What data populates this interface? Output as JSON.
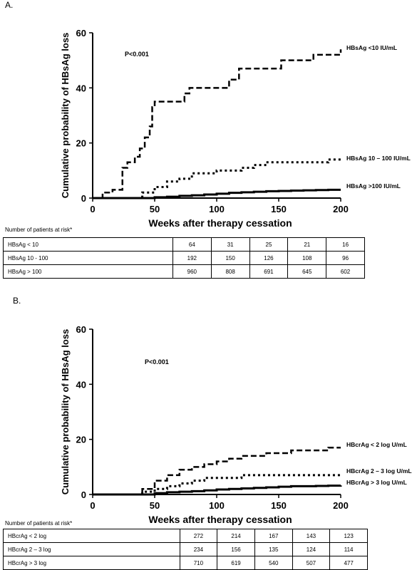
{
  "panels": [
    {
      "label": "A.",
      "pvalue": "P<0.001",
      "risk_title": "Number of patients at risk*",
      "risk_table": [
        {
          "label": "HBsAg < 10",
          "values": [
            "64",
            "31",
            "25",
            "21",
            "16"
          ]
        },
        {
          "label": "HBsAg 10 - 100",
          "values": [
            "192",
            "150",
            "126",
            "108",
            "96"
          ]
        },
        {
          "label": "HBsAg > 100",
          "values": [
            "960",
            "808",
            "691",
            "645",
            "602"
          ]
        }
      ]
    },
    {
      "label": "B.",
      "pvalue": "P<0.001",
      "risk_title": "Number of patients at risk*",
      "risk_table": [
        {
          "label": "HBcrAg < 2 log",
          "values": [
            "272",
            "214",
            "167",
            "143",
            "123"
          ]
        },
        {
          "label": "HBcrAg 2 – 3 log",
          "values": [
            "234",
            "156",
            "135",
            "124",
            "114"
          ]
        },
        {
          "label": "HBcrAg > 3 log",
          "values": [
            "710",
            "619",
            "540",
            "507",
            "477"
          ]
        }
      ]
    }
  ],
  "chart_data": [
    {
      "type": "line",
      "subtype": "kaplan-meier step",
      "title": "",
      "xlabel": "Weeks after therapy cessation",
      "ylabel": "Cumulative probability of HBsAg loss",
      "xlim": [
        0,
        200
      ],
      "ylim": [
        0,
        60
      ],
      "xticks": [
        "0",
        "50",
        "100",
        "150",
        "200"
      ],
      "yticks": [
        "0",
        "20",
        "40",
        "60"
      ],
      "series": [
        {
          "name": "HBsAg <10 IU/mL",
          "style": "dashed",
          "x": [
            0,
            8,
            16,
            24,
            28,
            34,
            38,
            42,
            46,
            48,
            50,
            54,
            60,
            68,
            74,
            78,
            90,
            100,
            110,
            118,
            126,
            140,
            152,
            164,
            178,
            186,
            200
          ],
          "y": [
            0,
            2,
            3,
            11,
            13,
            15,
            18,
            22,
            26,
            33,
            35,
            35,
            35,
            35,
            38,
            40,
            40,
            40,
            43,
            47,
            47,
            47,
            50,
            50,
            52,
            52,
            54
          ]
        },
        {
          "name": "HBsAg 10 – 100 IU/mL",
          "style": "dotted",
          "x": [
            0,
            25,
            40,
            50,
            60,
            70,
            80,
            90,
            100,
            110,
            120,
            130,
            140,
            150,
            160,
            170,
            180,
            190,
            200
          ],
          "y": [
            0,
            0,
            2,
            4,
            6,
            7,
            9,
            9,
            10,
            10,
            11,
            12,
            13,
            13,
            13,
            13,
            13,
            14,
            15
          ]
        },
        {
          "name": "HBsAg >100 IU/mL",
          "style": "solid",
          "x": [
            0,
            40,
            50,
            60,
            70,
            80,
            90,
            100,
            110,
            120,
            130,
            140,
            150,
            160,
            170,
            180,
            190,
            200
          ],
          "y": [
            0,
            0,
            0.3,
            0.5,
            0.8,
            1,
            1.3,
            1.6,
            1.9,
            2.1,
            2.3,
            2.5,
            2.6,
            2.7,
            2.8,
            2.9,
            3,
            3
          ]
        }
      ]
    },
    {
      "type": "line",
      "subtype": "kaplan-meier step",
      "title": "",
      "xlabel": "Weeks after therapy cessation",
      "ylabel": "Cumulative probability of HBsAg loss",
      "xlim": [
        0,
        200
      ],
      "ylim": [
        0,
        60
      ],
      "xticks": [
        "0",
        "50",
        "100",
        "150",
        "200"
      ],
      "yticks": [
        "0",
        "20",
        "40",
        "60"
      ],
      "series": [
        {
          "name": "HBcrAg < 2 log U/mL",
          "style": "dashed",
          "x": [
            0,
            25,
            40,
            50,
            60,
            70,
            80,
            90,
            100,
            110,
            120,
            130,
            140,
            150,
            160,
            170,
            180,
            190,
            200
          ],
          "y": [
            0,
            0,
            2,
            5,
            7,
            9,
            10,
            11,
            12,
            13,
            14,
            14,
            15,
            15,
            16,
            16,
            16,
            17,
            17
          ]
        },
        {
          "name": "HBcrAg 2 – 3 log U/mL",
          "style": "dotted",
          "x": [
            0,
            25,
            40,
            50,
            60,
            70,
            80,
            90,
            100,
            110,
            120,
            130,
            140,
            150,
            160,
            170,
            180,
            190,
            200
          ],
          "y": [
            0,
            0,
            1,
            2,
            3,
            4,
            5,
            6,
            6,
            6,
            7,
            7,
            7,
            7,
            7,
            7,
            7,
            7,
            7
          ]
        },
        {
          "name": "HBcrAg > 3 log U/mL",
          "style": "solid",
          "x": [
            0,
            30,
            50,
            60,
            70,
            80,
            90,
            100,
            110,
            120,
            130,
            140,
            150,
            160,
            170,
            180,
            190,
            200
          ],
          "y": [
            0,
            0,
            0.5,
            0.8,
            1,
            1.2,
            1.5,
            1.8,
            2,
            2.2,
            2.4,
            2.6,
            2.8,
            3,
            3,
            3.1,
            3.2,
            3.3
          ]
        }
      ]
    }
  ]
}
